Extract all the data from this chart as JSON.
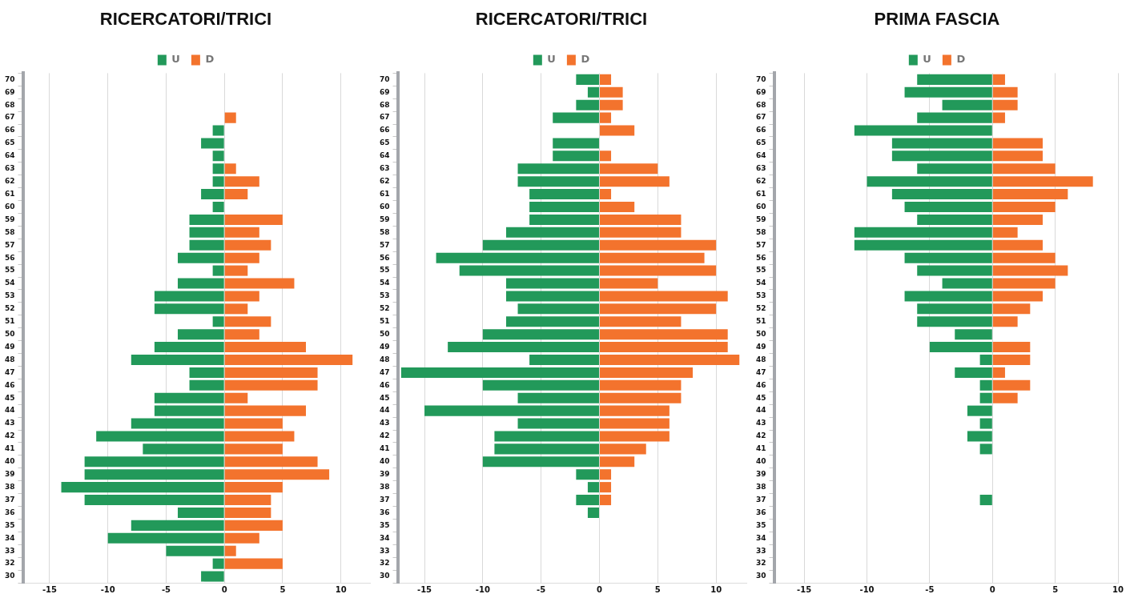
{
  "chart_data": [
    {
      "type": "bar",
      "title": "RICERCATORI/TRICI",
      "orientation": "horizontal",
      "stacked": true,
      "legend": "top",
      "grid": "x",
      "categories": [
        "70",
        "69",
        "68",
        "67",
        "66",
        "65",
        "64",
        "63",
        "62",
        "61",
        "60",
        "59",
        "58",
        "57",
        "56",
        "55",
        "54",
        "53",
        "52",
        "51",
        "50",
        "49",
        "48",
        "47",
        "46",
        "45",
        "44",
        "43",
        "42",
        "41",
        "40",
        "39",
        "38",
        "37",
        "36",
        "35",
        "34",
        "33",
        "32",
        "30"
      ],
      "xlim": [
        -17.3,
        12.5
      ],
      "xticks": [
        -15,
        -10,
        -5,
        0,
        5,
        10
      ],
      "series": [
        {
          "name": "U",
          "color": "#22995a",
          "values": [
            0,
            0,
            0,
            0,
            -1,
            -2,
            -1,
            -1,
            -1,
            -2,
            -1,
            -3,
            -3,
            -3,
            -4,
            -1,
            -4,
            -6,
            -6,
            -1,
            -4,
            -6,
            -8,
            -3,
            -3,
            -6,
            -6,
            -8,
            -11,
            -7,
            -12,
            -12,
            -14,
            -12,
            -4,
            -8,
            -10,
            -5,
            -1,
            -2
          ]
        },
        {
          "name": "D",
          "color": "#f3732d",
          "values": [
            0,
            0,
            0,
            1,
            0,
            0,
            0,
            1,
            3,
            2,
            0,
            5,
            3,
            4,
            3,
            2,
            6,
            3,
            2,
            4,
            3,
            7,
            11,
            8,
            8,
            2,
            7,
            5,
            6,
            5,
            8,
            9,
            5,
            4,
            4,
            5,
            3,
            1,
            5,
            0
          ]
        }
      ]
    },
    {
      "type": "bar",
      "title": "RICERCATORI/TRICI",
      "orientation": "horizontal",
      "stacked": true,
      "legend": "top",
      "grid": "x",
      "categories": [
        "70",
        "69",
        "68",
        "67",
        "66",
        "65",
        "64",
        "63",
        "62",
        "61",
        "60",
        "59",
        "58",
        "57",
        "56",
        "55",
        "54",
        "53",
        "52",
        "51",
        "50",
        "49",
        "48",
        "47",
        "46",
        "45",
        "44",
        "43",
        "42",
        "41",
        "40",
        "39",
        "38",
        "37",
        "36",
        "35",
        "34",
        "33",
        "32",
        "30"
      ],
      "xlim": [
        -17.3,
        12.6
      ],
      "xticks": [
        -15,
        -10,
        -5,
        0,
        5,
        10
      ],
      "series": [
        {
          "name": "U",
          "color": "#22995a",
          "values": [
            -2,
            -1,
            -2,
            -4,
            0,
            -4,
            -4,
            -7,
            -7,
            -6,
            -6,
            -6,
            -8,
            -10,
            -14,
            -12,
            -8,
            -8,
            -7,
            -8,
            -10,
            -13,
            -6,
            -17,
            -10,
            -7,
            -15,
            -7,
            -9,
            -9,
            -10,
            -2,
            -1,
            -2,
            -1,
            0,
            0,
            0,
            0,
            0
          ]
        },
        {
          "name": "D",
          "color": "#f3732d",
          "values": [
            1,
            2,
            2,
            1,
            3,
            0,
            1,
            5,
            6,
            1,
            3,
            7,
            7,
            10,
            9,
            10,
            5,
            11,
            10,
            7,
            11,
            11,
            12,
            8,
            7,
            7,
            6,
            6,
            6,
            4,
            3,
            1,
            1,
            1,
            0,
            0,
            0,
            0,
            0,
            0
          ]
        }
      ]
    },
    {
      "type": "bar",
      "title": "PRIMA FASCIA",
      "orientation": "horizontal",
      "stacked": true,
      "legend": "top",
      "grid": "x",
      "categories": [
        "70",
        "69",
        "68",
        "67",
        "66",
        "65",
        "64",
        "63",
        "62",
        "61",
        "60",
        "59",
        "58",
        "57",
        "56",
        "55",
        "54",
        "53",
        "52",
        "51",
        "50",
        "49",
        "48",
        "47",
        "46",
        "45",
        "44",
        "43",
        "42",
        "41",
        "40",
        "39",
        "38",
        "37",
        "36",
        "35",
        "34",
        "33",
        "32",
        "30"
      ],
      "xlim": [
        -17.4,
        10
      ],
      "xticks": [
        -15,
        -10,
        -5,
        0,
        5,
        10
      ],
      "series": [
        {
          "name": "U",
          "color": "#22995a",
          "values": [
            -6,
            -7,
            -4,
            -6,
            -11,
            -8,
            -8,
            -6,
            -10,
            -8,
            -7,
            -6,
            -11,
            -11,
            -7,
            -6,
            -4,
            -7,
            -6,
            -6,
            -3,
            -5,
            -1,
            -3,
            -1,
            -1,
            -2,
            -1,
            -2,
            -1,
            0,
            0,
            0,
            -1,
            0,
            0,
            0,
            0,
            0,
            0
          ]
        },
        {
          "name": "D",
          "color": "#f3732d",
          "values": [
            1,
            2,
            2,
            1,
            0,
            4,
            4,
            5,
            8,
            6,
            5,
            4,
            2,
            4,
            5,
            6,
            5,
            4,
            3,
            2,
            0,
            3,
            3,
            1,
            3,
            2,
            0,
            0,
            0,
            0,
            0,
            0,
            0,
            0,
            0,
            0,
            0,
            0,
            0,
            0
          ]
        }
      ]
    }
  ]
}
